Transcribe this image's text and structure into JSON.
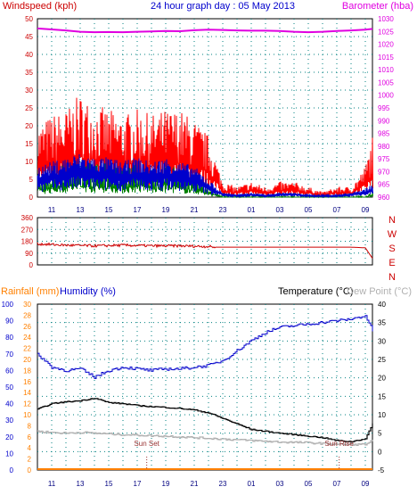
{
  "header": {
    "left_label": "Windspeed (kph)",
    "title": "24 hour graph day : 05 May 2013",
    "right_label": "Barometer (hba)"
  },
  "hours": [
    "11",
    "13",
    "15",
    "17",
    "19",
    "21",
    "23",
    "01",
    "03",
    "05",
    "07",
    "09"
  ],
  "colors": {
    "wind_gust": "#ff0000",
    "wind_avg": "#0000cc",
    "wind_low": "#008000",
    "barometer": "#e000e0",
    "direction": "#cc0000",
    "humidity": "#0000cc",
    "temperature": "#000000",
    "dew_point": "#b0b0b0",
    "rainfall": "#ff8000",
    "left_axis": "#cc0000",
    "blue_axis": "#0000cc",
    "grid": "#008080"
  },
  "chart_data": [
    {
      "type": "line",
      "name": "wind-barometer",
      "ylim_left": [
        0,
        50
      ],
      "left_ticks": [
        0,
        5,
        10,
        15,
        20,
        25,
        30,
        35,
        40,
        45,
        50
      ],
      "ylim_right": [
        960,
        1030
      ],
      "right_ticks": [
        960,
        965,
        970,
        975,
        980,
        985,
        990,
        995,
        1000,
        1005,
        1010,
        1015,
        1020,
        1025,
        1030
      ],
      "x": [
        "10:00",
        "11:00",
        "12:00",
        "13:00",
        "14:00",
        "15:00",
        "16:00",
        "17:00",
        "18:00",
        "19:00",
        "20:00",
        "21:00",
        "22:00",
        "23:00",
        "00:00",
        "01:00",
        "02:00",
        "03:00",
        "04:00",
        "05:00",
        "06:00",
        "07:00",
        "08:00",
        "09:00",
        "09:30"
      ],
      "gust": [
        14,
        16,
        17,
        20,
        18,
        17,
        16,
        17,
        16,
        17,
        17,
        15,
        12,
        3,
        2,
        3,
        2,
        3,
        3,
        2,
        1,
        2,
        2,
        6,
        12
      ],
      "average": [
        7,
        8,
        9,
        10,
        9,
        9,
        8,
        9,
        8,
        9,
        8,
        7,
        4,
        1,
        0.5,
        1,
        0.5,
        1,
        1,
        0.5,
        0.5,
        0.5,
        1,
        2,
        3
      ],
      "low": [
        4,
        5,
        6,
        7,
        6,
        6,
        5,
        6,
        5,
        6,
        5,
        4,
        2,
        0,
        0,
        0,
        0,
        0,
        0,
        0,
        0,
        0,
        0,
        0,
        1
      ],
      "barometer": [
        1026.2,
        1025.8,
        1025.4,
        1024.9,
        1024.7,
        1024.8,
        1024.7,
        1024.9,
        1025.0,
        1025.2,
        1025.1,
        1025.5,
        1025.7,
        1025.6,
        1025.4,
        1025.3,
        1025.3,
        1025.2,
        1024.9,
        1024.7,
        1024.9,
        1025.2,
        1025.4,
        1025.7,
        1026.0
      ]
    },
    {
      "type": "line",
      "name": "wind-direction",
      "ylim": [
        0,
        360
      ],
      "ticks": [
        0,
        90,
        180,
        270,
        360
      ],
      "compass": [
        "N",
        "W",
        "S",
        "E",
        "N"
      ],
      "x": [
        "10:00",
        "12:00",
        "14:00",
        "16:00",
        "18:00",
        "20:00",
        "22:00",
        "22:30",
        "00:00",
        "04:00",
        "08:00",
        "09:00",
        "09:30"
      ],
      "values": [
        160,
        150,
        145,
        150,
        145,
        145,
        140,
        135,
        135,
        135,
        135,
        130,
        50
      ]
    },
    {
      "type": "line",
      "name": "temp-humidity",
      "labels": {
        "rainfall": "Rainfall (mm)",
        "humidity": "Humidity (%)",
        "temperature": "Temperature (°C)",
        "dew_point": "Dew Point (°C)"
      },
      "ylim_humidity": [
        0,
        100
      ],
      "humidity_ticks": [
        0,
        10,
        20,
        30,
        40,
        50,
        60,
        70,
        80,
        90,
        100
      ],
      "ylim_rain": [
        0,
        30
      ],
      "rain_ticks": [
        0,
        2,
        4,
        6,
        8,
        10,
        12,
        14,
        16,
        18,
        20,
        22,
        24,
        26,
        28,
        30
      ],
      "ylim_temp": [
        -5,
        40
      ],
      "temp_ticks": [
        -5,
        0,
        5,
        10,
        15,
        20,
        25,
        30,
        35,
        40
      ],
      "x": [
        "10:00",
        "11:00",
        "12:00",
        "13:00",
        "14:00",
        "15:00",
        "16:00",
        "17:00",
        "18:00",
        "19:00",
        "20:00",
        "21:00",
        "22:00",
        "23:00",
        "00:00",
        "01:00",
        "02:00",
        "03:00",
        "04:00",
        "05:00",
        "06:00",
        "07:00",
        "08:00",
        "09:00",
        "09:30"
      ],
      "humidity": [
        70,
        62,
        60,
        61,
        56,
        60,
        62,
        61,
        60,
        61,
        61,
        62,
        63,
        66,
        72,
        78,
        83,
        86,
        87,
        88,
        89,
        90,
        91,
        93,
        84
      ],
      "temperature": [
        11.5,
        13,
        13.5,
        13.8,
        14.5,
        13.3,
        13,
        12.5,
        12.2,
        12,
        11.7,
        11.3,
        10.5,
        9,
        7.5,
        6,
        5.5,
        5,
        4.6,
        4.2,
        3.8,
        3,
        2.7,
        3.5,
        7.5
      ],
      "dew_point": [
        5.5,
        5.2,
        5.0,
        5.2,
        5.0,
        4.8,
        4.6,
        4.5,
        4.3,
        4.2,
        4.0,
        3.8,
        3.6,
        3.4,
        3.2,
        3.0,
        2.8,
        2.6,
        2.5,
        2.4,
        2.2,
        2.0,
        1.9,
        2.0,
        3.0
      ],
      "rainfall": [
        0,
        0
      ],
      "annotations": [
        {
          "text": "Sun Set",
          "x": "17:40"
        },
        {
          "text": "Sun Rise",
          "x": "07:10"
        }
      ]
    }
  ]
}
